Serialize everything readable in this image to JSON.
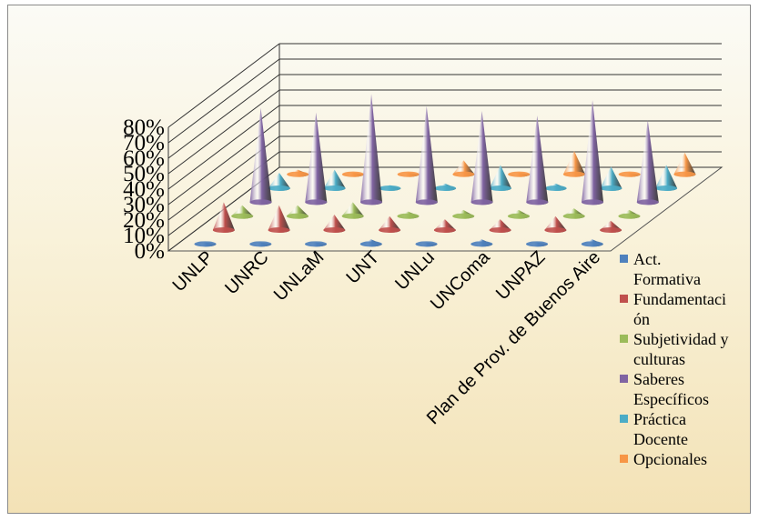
{
  "chart_data": {
    "type": "bar",
    "subtype": "3d-cone",
    "title": "",
    "xlabel": "",
    "ylabel": "",
    "ylim": [
      0,
      80
    ],
    "ytick_labels": [
      "0%",
      "10%",
      "20%",
      "30%",
      "40%",
      "50%",
      "60%",
      "70%",
      "80%"
    ],
    "grid": true,
    "legend_position": "right",
    "categories": [
      "UNLP",
      "UNRC",
      "UNLaM",
      "UNT",
      "UNLu",
      "UNComa",
      "UNPAZ",
      "Plan de Prov. de Buenos Aire"
    ],
    "series": [
      {
        "name": "Act. Formativa",
        "color": "#4f81bd",
        "values": [
          1,
          1,
          1,
          3,
          1,
          3,
          1,
          3
        ]
      },
      {
        "name": "Fundamentación",
        "color": "#c0504d",
        "values": [
          18,
          16,
          10,
          9,
          7,
          7,
          9,
          6
        ]
      },
      {
        "name": "Subjetividad y culturas",
        "color": "#9bbb59",
        "values": [
          7,
          7,
          9,
          3,
          4,
          4,
          5,
          4
        ]
      },
      {
        "name": "Saberes Específicos",
        "color": "#8064a2",
        "values": [
          61,
          58,
          70,
          62,
          59,
          56,
          66,
          53
        ]
      },
      {
        "name": "Práctica Docente",
        "color": "#4bacc6",
        "values": [
          10,
          12,
          2,
          3,
          15,
          3,
          14,
          15
        ]
      },
      {
        "name": "Opcionales",
        "color": "#f79646",
        "values": [
          3,
          1,
          1,
          9,
          1,
          15,
          1,
          14
        ]
      }
    ]
  },
  "legend": {
    "items": [
      {
        "lines": [
          "Act.",
          "Formativa"
        ],
        "color": "#4f81bd"
      },
      {
        "lines": [
          "Fundamentaci",
          "ón"
        ],
        "color": "#c0504d"
      },
      {
        "lines": [
          "Subjetividad y",
          "culturas"
        ],
        "color": "#9bbb59"
      },
      {
        "lines": [
          "Saberes",
          "Específicos"
        ],
        "color": "#8064a2"
      },
      {
        "lines": [
          "Práctica",
          "Docente"
        ],
        "color": "#4bacc6"
      },
      {
        "lines": [
          "Opcionales"
        ],
        "color": "#f79646"
      }
    ]
  }
}
